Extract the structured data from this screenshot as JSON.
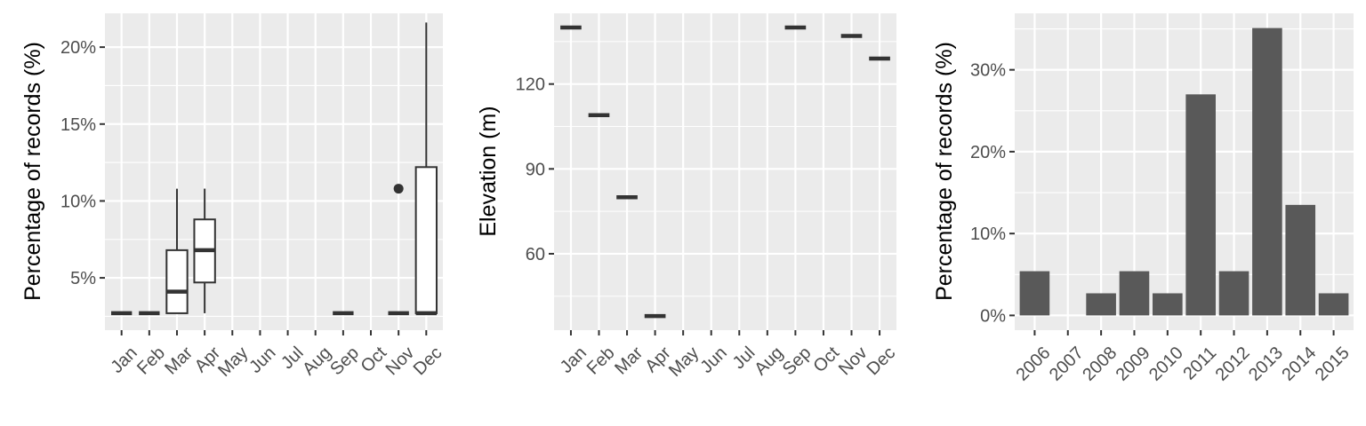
{
  "colors": {
    "panel_bg": "#ebebeb",
    "grid": "#ffffff",
    "ink": "#333333",
    "bar": "#595959",
    "tick_text": "#4d4d4d",
    "box_fill": "#ffffff"
  },
  "chart_data": [
    {
      "type": "boxplot",
      "ylabel": "Percentage of records (%)",
      "categories": [
        "Jan",
        "Feb",
        "Mar",
        "Apr",
        "May",
        "Jun",
        "Jul",
        "Aug",
        "Sep",
        "Oct",
        "Nov",
        "Dec"
      ],
      "ylim": [
        1.6,
        22.2
      ],
      "yticks": [
        5,
        10,
        15,
        20
      ],
      "ytick_labels": [
        "5%",
        "10%",
        "15%",
        "20%"
      ],
      "boxes": [
        {
          "category": "Jan",
          "min": 2.7,
          "q1": 2.7,
          "median": 2.7,
          "q3": 2.7,
          "max": 2.7
        },
        {
          "category": "Feb",
          "min": 2.7,
          "q1": 2.7,
          "median": 2.7,
          "q3": 2.7,
          "max": 2.7
        },
        {
          "category": "Mar",
          "min": 2.7,
          "q1": 2.7,
          "median": 4.1,
          "q3": 6.8,
          "max": 10.8
        },
        {
          "category": "Apr",
          "min": 2.7,
          "q1": 4.7,
          "median": 6.8,
          "q3": 8.8,
          "max": 10.8
        },
        {
          "category": "Sep",
          "min": 2.7,
          "q1": 2.7,
          "median": 2.7,
          "q3": 2.7,
          "max": 2.7
        },
        {
          "category": "Nov",
          "min": 2.7,
          "q1": 2.7,
          "median": 2.7,
          "q3": 2.7,
          "max": 2.7,
          "outliers": [
            10.8
          ]
        },
        {
          "category": "Dec",
          "min": 2.7,
          "q1": 2.7,
          "median": 2.7,
          "q3": 12.2,
          "max": 21.6
        }
      ]
    },
    {
      "type": "boxplot",
      "ylabel": "Elevation (m)",
      "categories": [
        "Jan",
        "Feb",
        "Mar",
        "Apr",
        "May",
        "Jun",
        "Jul",
        "Aug",
        "Sep",
        "Oct",
        "Nov",
        "Dec"
      ],
      "ylim": [
        33,
        145
      ],
      "yticks": [
        60,
        90,
        120
      ],
      "ytick_labels": [
        "60",
        "90",
        "120"
      ],
      "boxes": [
        {
          "category": "Jan",
          "min": 140,
          "q1": 140,
          "median": 140,
          "q3": 140,
          "max": 140
        },
        {
          "category": "Feb",
          "min": 109,
          "q1": 109,
          "median": 109,
          "q3": 109,
          "max": 109
        },
        {
          "category": "Mar",
          "min": 80,
          "q1": 80,
          "median": 80,
          "q3": 80,
          "max": 80
        },
        {
          "category": "Apr",
          "min": 38,
          "q1": 38,
          "median": 38,
          "q3": 38,
          "max": 38
        },
        {
          "category": "Sep",
          "min": 140,
          "q1": 140,
          "median": 140,
          "q3": 140,
          "max": 140
        },
        {
          "category": "Nov",
          "min": 137,
          "q1": 137,
          "median": 137,
          "q3": 137,
          "max": 137
        },
        {
          "category": "Dec",
          "min": 129,
          "q1": 129,
          "median": 129,
          "q3": 129,
          "max": 129
        }
      ]
    },
    {
      "type": "bar",
      "ylabel": "Percentage of records (%)",
      "categories": [
        "2006",
        "2007",
        "2008",
        "2009",
        "2010",
        "2011",
        "2012",
        "2013",
        "2014",
        "2015"
      ],
      "values": [
        5.4,
        0,
        2.7,
        5.4,
        2.7,
        27.0,
        5.4,
        35.1,
        13.5,
        2.7
      ],
      "ylim": [
        -1.8,
        36.9
      ],
      "yticks": [
        0,
        10,
        20,
        30
      ],
      "ytick_labels": [
        "0%",
        "10%",
        "20%",
        "30%"
      ]
    }
  ]
}
